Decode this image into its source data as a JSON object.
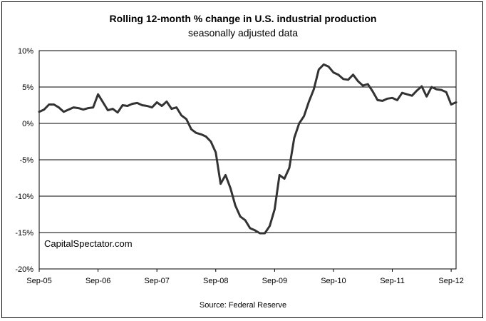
{
  "chart_data": {
    "type": "line",
    "title": "Rolling 12-month %  change in U.S. industrial production",
    "subtitle": "seasonally adjusted data",
    "source": "Source: Federal Reserve",
    "watermark": "CapitalSpectator.com",
    "xlabel": "",
    "ylabel": "",
    "ylim": [
      -20,
      10
    ],
    "grid": "horizontal",
    "line_color": "#333333",
    "x_ticks": [
      "Sep-05",
      "Sep-06",
      "Sep-07",
      "Sep-08",
      "Sep-09",
      "Sep-10",
      "Sep-11",
      "Sep-12"
    ],
    "y_ticks": [
      "10%",
      "5%",
      "0%",
      "-5%",
      "-10%",
      "-15%",
      "-20%"
    ],
    "series": [
      {
        "values": [
          1.6,
          1.9,
          2.6,
          2.6,
          2.2,
          1.6,
          1.9,
          2.2,
          2.1,
          1.9,
          2.1,
          2.2,
          4.0,
          2.9,
          1.8,
          2.0,
          1.5,
          2.5,
          2.4,
          2.7,
          2.8,
          2.5,
          2.4,
          2.2,
          2.9,
          2.4,
          3.0,
          2.0,
          2.2,
          1.1,
          0.6,
          -0.8,
          -1.3,
          -1.5,
          -1.8,
          -2.5,
          -4.0,
          -8.3,
          -7.1,
          -8.9,
          -11.3,
          -12.8,
          -13.3,
          -14.4,
          -14.7,
          -15.1,
          -15.1,
          -14.1,
          -11.8,
          -7.1,
          -7.6,
          -6.1,
          -2.0,
          0.0,
          1.0,
          3.0,
          4.7,
          7.4,
          8.1,
          7.8,
          7.0,
          6.7,
          6.1,
          6.0,
          6.7,
          5.8,
          5.2,
          5.4,
          4.4,
          3.2,
          3.1,
          3.4,
          3.5,
          3.2,
          4.2,
          4.0,
          3.8,
          4.5,
          5.1,
          3.7,
          5.0,
          4.7,
          4.6,
          4.3,
          2.6,
          2.9
        ]
      }
    ]
  }
}
